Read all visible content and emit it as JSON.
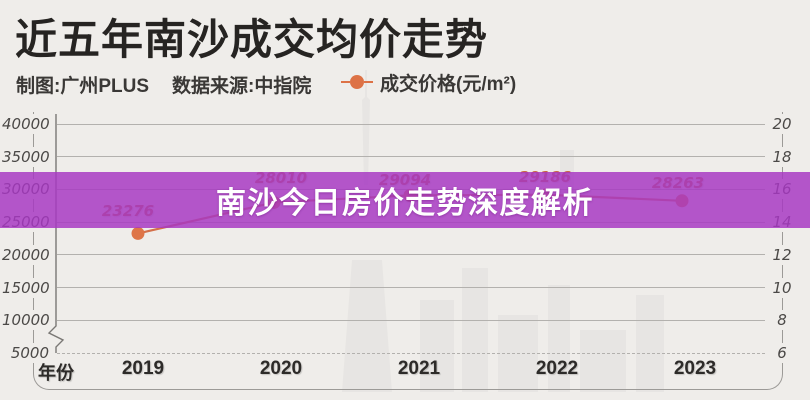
{
  "header": {
    "title": "近五年南沙成交均价走势",
    "credit": "制图:广州PLUS",
    "source": "数据来源:中指院",
    "legend_label": "成交价格(元/m²)"
  },
  "overlay": {
    "text": "南沙今日房价走势深度解析",
    "color": "#a738c2"
  },
  "chart_data": {
    "type": "line",
    "title": "近五年南沙成交均价走势",
    "categories": [
      "2019",
      "2020",
      "2021",
      "2022",
      "2023"
    ],
    "series": [
      {
        "name": "成交价格(元/m²)",
        "values": [
          23276,
          28010,
          29094,
          29186,
          28263
        ]
      }
    ],
    "xlabel": "年份",
    "left_axis_ticks": [
      40000,
      35000,
      30000,
      25000,
      20000,
      15000,
      10000,
      5000
    ],
    "right_axis_ticks": [
      20,
      18,
      16,
      14,
      12,
      10,
      8,
      6
    ],
    "axis_break_below": 10000,
    "grid": "horizontal",
    "legend_position": "top",
    "colors": {
      "line": "#d4704a",
      "point": "#de7548",
      "value_label": "#c8693f",
      "banner": "#a738c2",
      "background": "#efedea"
    }
  }
}
